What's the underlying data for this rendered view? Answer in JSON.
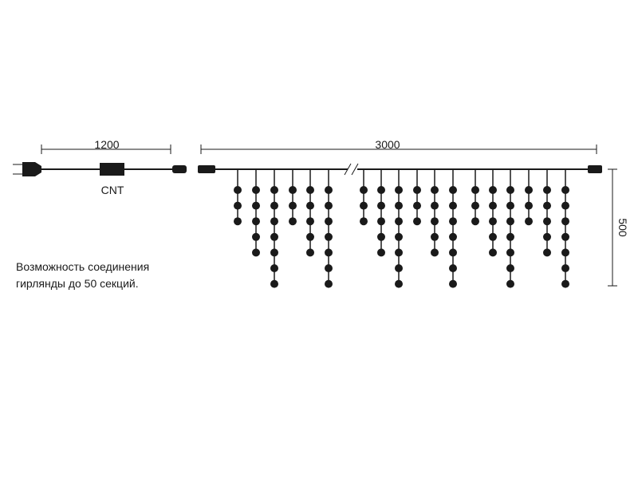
{
  "dimensions": {
    "controller_cable": "1200",
    "width": "3000",
    "height": "500"
  },
  "controller_label": "CNT",
  "note": [
    "Возможность соединения",
    "гирлянды до 50 секций."
  ]
}
